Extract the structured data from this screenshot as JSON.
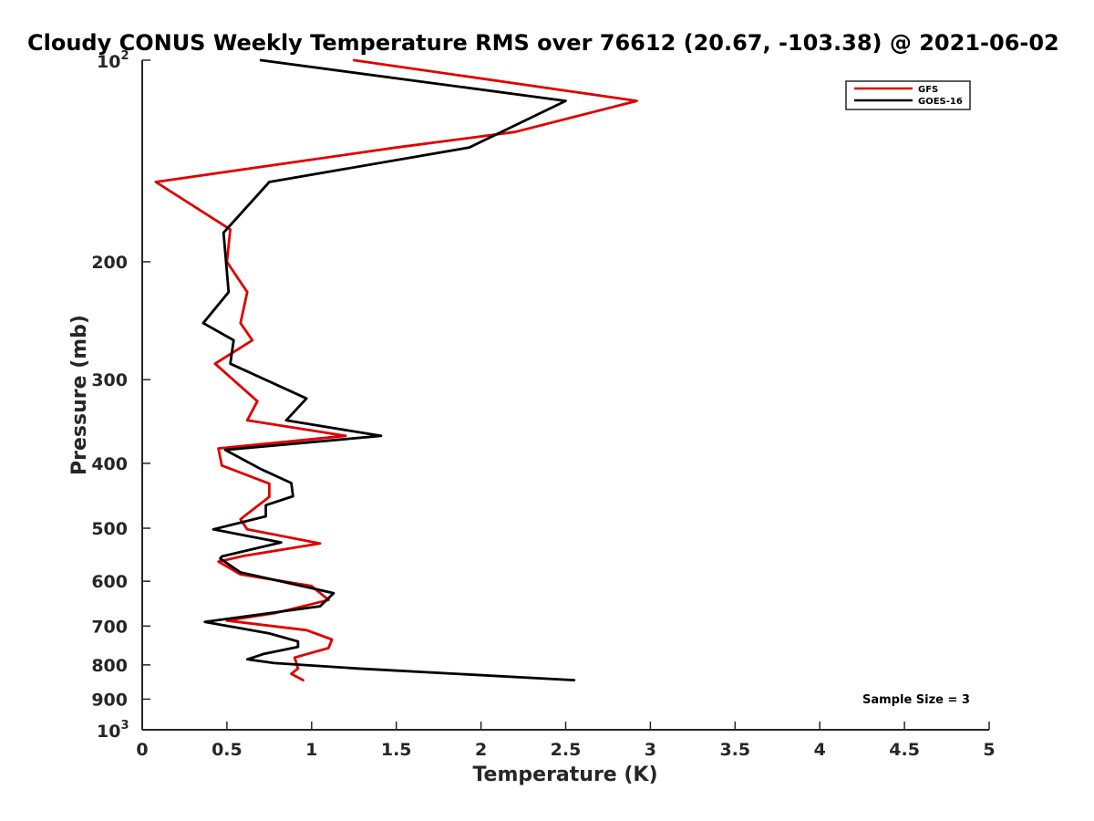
{
  "chart_data": {
    "type": "line",
    "title": "Cloudy CONUS Weekly Temperature RMS over 76612 (20.67, -103.38) @ 2021-06-02",
    "xlabel": "Temperature (K)",
    "ylabel": "Pressure (mb)",
    "xlim": [
      0,
      5
    ],
    "ylim": [
      100,
      1000
    ],
    "y_scale": "log",
    "y_reversed": true,
    "x_ticks": [
      0,
      0.5,
      1,
      1.5,
      2,
      2.5,
      3,
      3.5,
      4,
      4.5,
      5
    ],
    "x_tick_labels": [
      "0",
      "0.5",
      "1",
      "1.5",
      "2",
      "2.5",
      "3",
      "3.5",
      "4",
      "4.5",
      "5"
    ],
    "y_ticks": [
      {
        "value": 100,
        "base": "10",
        "exp": "2"
      },
      {
        "value": 200,
        "label": "200"
      },
      {
        "value": 300,
        "label": "300"
      },
      {
        "value": 400,
        "label": "400"
      },
      {
        "value": 500,
        "label": "500"
      },
      {
        "value": 600,
        "label": "600"
      },
      {
        "value": 700,
        "label": "700"
      },
      {
        "value": 800,
        "label": "800"
      },
      {
        "value": 900,
        "label": "900"
      },
      {
        "value": 1000,
        "base": "10",
        "exp": "3"
      }
    ],
    "grid": false,
    "legend_position": "top-right",
    "annotation": "Sample Size = 3",
    "series": [
      {
        "name": "GFS",
        "color": "#e00000",
        "points": [
          [
            1.25,
            100
          ],
          [
            2.92,
            115
          ],
          [
            2.2,
            128
          ],
          [
            1.5,
            135
          ],
          [
            0.08,
            152
          ],
          [
            0.52,
            179
          ],
          [
            0.5,
            200
          ],
          [
            0.62,
            222
          ],
          [
            0.58,
            247
          ],
          [
            0.65,
            262
          ],
          [
            0.43,
            284
          ],
          [
            0.68,
            323
          ],
          [
            0.62,
            345
          ],
          [
            1.2,
            364
          ],
          [
            0.45,
            380
          ],
          [
            0.47,
            403
          ],
          [
            0.75,
            429
          ],
          [
            0.75,
            449
          ],
          [
            0.62,
            476
          ],
          [
            0.58,
            485
          ],
          [
            0.62,
            502
          ],
          [
            1.05,
            527
          ],
          [
            0.6,
            550
          ],
          [
            0.45,
            561
          ],
          [
            0.58,
            586
          ],
          [
            1.0,
            610
          ],
          [
            1.1,
            640
          ],
          [
            0.78,
            670
          ],
          [
            0.5,
            687
          ],
          [
            0.97,
            710
          ],
          [
            1.12,
            733
          ],
          [
            1.1,
            755
          ],
          [
            0.9,
            780
          ],
          [
            0.92,
            810
          ],
          [
            0.88,
            825
          ],
          [
            0.95,
            843
          ]
        ]
      },
      {
        "name": "GOES-16",
        "color": "#000000",
        "points": [
          [
            0.7,
            100
          ],
          [
            2.5,
            115
          ],
          [
            1.93,
            135
          ],
          [
            0.75,
            152
          ],
          [
            0.48,
            181
          ],
          [
            0.51,
            222
          ],
          [
            0.36,
            247
          ],
          [
            0.54,
            262
          ],
          [
            0.52,
            284
          ],
          [
            0.97,
            320
          ],
          [
            0.85,
            345
          ],
          [
            1.41,
            364
          ],
          [
            0.49,
            382
          ],
          [
            0.7,
            408
          ],
          [
            0.88,
            428
          ],
          [
            0.89,
            448
          ],
          [
            0.73,
            462
          ],
          [
            0.73,
            480
          ],
          [
            0.42,
            502
          ],
          [
            0.82,
            525
          ],
          [
            0.47,
            551
          ],
          [
            0.46,
            555
          ],
          [
            0.58,
            582
          ],
          [
            0.97,
            612
          ],
          [
            1.13,
            625
          ],
          [
            1.05,
            654
          ],
          [
            0.37,
            690
          ],
          [
            0.75,
            718
          ],
          [
            0.92,
            738
          ],
          [
            0.92,
            752
          ],
          [
            0.72,
            770
          ],
          [
            0.62,
            785
          ],
          [
            0.78,
            795
          ],
          [
            1.27,
            810
          ],
          [
            2.55,
            843
          ]
        ]
      }
    ]
  }
}
